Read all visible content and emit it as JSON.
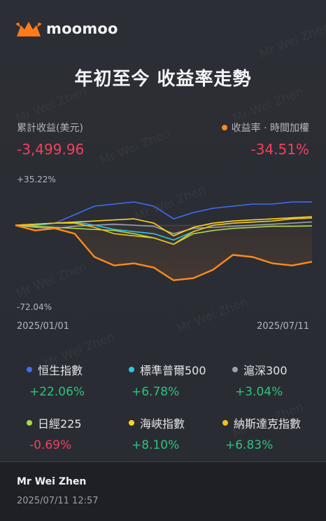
{
  "brand": {
    "logo_text": "moomoo",
    "logo_color": "#ff7a1a"
  },
  "title": "年初至今 收益率走勢",
  "summary": {
    "pnl_label": "累計收益(美元)",
    "pnl_value": "-3,499.96",
    "return_label": "收益率 · 時間加權",
    "return_value": "-34.51%"
  },
  "watermark": "Mr Wei Zhen",
  "chart_data": {
    "type": "line",
    "y_top_label": "+35.22%",
    "y_bottom_label": "-72.04%",
    "ylim": [
      -72.04,
      35.22
    ],
    "x_start_label": "2025/01/01",
    "x_end_label": "2025/07/11",
    "x": [
      "2025/01/01",
      "2025/01/14",
      "2025/01/27",
      "2025/02/09",
      "2025/02/22",
      "2025/03/07",
      "2025/03/20",
      "2025/04/02",
      "2025/04/09",
      "2025/04/22",
      "2025/05/05",
      "2025/05/18",
      "2025/05/31",
      "2025/06/13",
      "2025/06/26",
      "2025/07/11"
    ],
    "series": [
      {
        "name": "收益率",
        "color": "#ff8a1c",
        "values": [
          0,
          -5,
          -3,
          -8,
          -30,
          -38,
          -36,
          -40,
          -52,
          -50,
          -42,
          -28,
          -30,
          -36,
          -38,
          -34.51
        ]
      },
      {
        "name": "恒生指數",
        "color": "#3f6df5",
        "values": [
          0,
          0,
          2,
          10,
          18,
          20,
          22,
          18,
          6,
          12,
          16,
          18,
          20,
          20,
          22,
          22.06
        ]
      },
      {
        "name": "標準普爾500",
        "color": "#28c9e6",
        "values": [
          0,
          0,
          2,
          3,
          0,
          -4,
          -6,
          -8,
          -14,
          -6,
          0,
          2,
          3,
          4,
          6,
          6.78
        ]
      },
      {
        "name": "滬深300",
        "color": "#9aa0aa",
        "values": [
          0,
          -2,
          -3,
          -1,
          0,
          1,
          0,
          -1,
          -8,
          -3,
          -2,
          -1,
          0,
          1,
          2,
          3.04
        ]
      },
      {
        "name": "日經225",
        "color": "#a8d84a",
        "values": [
          0,
          -1,
          -2,
          -3,
          -4,
          -5,
          -8,
          -12,
          -18,
          -8,
          -5,
          -3,
          -2,
          -1,
          -1,
          -0.69
        ]
      },
      {
        "name": "海峽指數",
        "color": "#ffd21c",
        "values": [
          0,
          1,
          2,
          3,
          4,
          5,
          6,
          2,
          -10,
          -2,
          2,
          4,
          5,
          6,
          7,
          8.1
        ]
      },
      {
        "name": "納斯達克指數",
        "color": "#f2c21a",
        "values": [
          0,
          1,
          2,
          2,
          -2,
          -8,
          -10,
          -12,
          -18,
          -6,
          0,
          2,
          3,
          4,
          6,
          6.83
        ]
      }
    ]
  },
  "legend": [
    {
      "name": "恒生指數",
      "value": "+22.06%",
      "dot": "#3f6df5",
      "sign": "pos"
    },
    {
      "name": "標準普爾500",
      "value": "+6.78%",
      "dot": "#28c9e6",
      "sign": "pos"
    },
    {
      "name": "滬深300",
      "value": "+3.04%",
      "dot": "#9aa0aa",
      "sign": "pos"
    },
    {
      "name": "日經225",
      "value": "-0.69%",
      "dot": "#a8d84a",
      "sign": "neg"
    },
    {
      "name": "海峽指數",
      "value": "+8.10%",
      "dot": "#ffd21c",
      "sign": "pos"
    },
    {
      "name": "納斯達克指數",
      "value": "+6.83%",
      "dot": "#f2c21a",
      "sign": "pos"
    }
  ],
  "footer": {
    "author": "Mr Wei Zhen",
    "timestamp": "2025/07/11 12:57"
  }
}
